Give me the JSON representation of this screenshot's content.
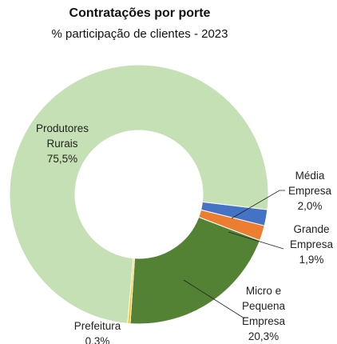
{
  "chart_data": {
    "type": "donut",
    "title": "Contratações por porte",
    "subtitle": "% participação de clientes - 2023",
    "categories": [
      "Produtores Rurais",
      "Média Empresa",
      "Grande Empresa",
      "Micro e Pequena Empresa",
      "Prefeitura"
    ],
    "values": [
      75.5,
      2.0,
      1.9,
      20.3,
      0.3
    ],
    "value_labels": [
      "75,5%",
      "2,0%",
      "1,9%",
      "20,3%",
      "0,3%"
    ],
    "colors": [
      "#c5e0b4",
      "#4472c4",
      "#ed7d31",
      "#548235",
      "#ffc000"
    ]
  }
}
